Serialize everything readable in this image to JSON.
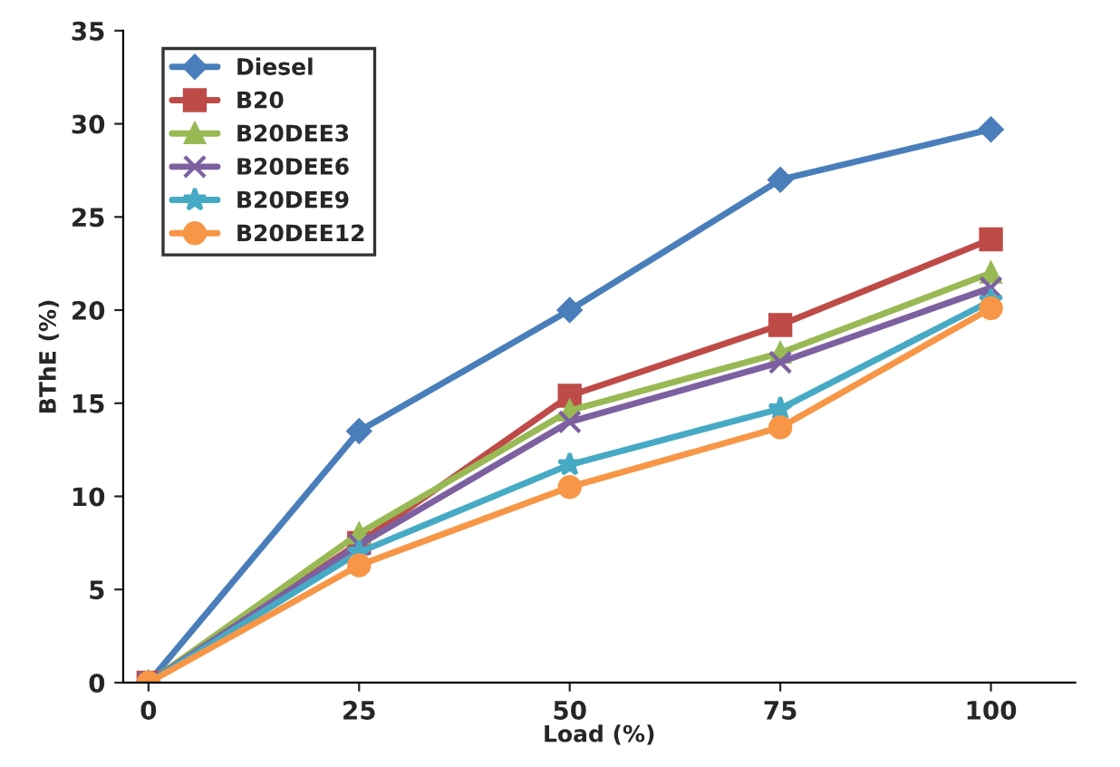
{
  "chart_data": {
    "type": "line",
    "xlabel": "Load (%)",
    "ylabel": "BThE (%)",
    "x": [
      0,
      25,
      50,
      75,
      100
    ],
    "xlim": [
      -3,
      110
    ],
    "xticks": [
      0,
      25,
      50,
      75,
      100
    ],
    "ylim": [
      0,
      35
    ],
    "yticks": [
      0,
      5,
      10,
      15,
      20,
      25,
      30,
      35
    ],
    "grid": false,
    "legend": "top left",
    "series": [
      {
        "name": "Diesel",
        "color": "#4a7ebb",
        "marker": "diamond",
        "values": [
          0,
          13.5,
          20,
          27,
          29.7
        ]
      },
      {
        "name": "B20",
        "color": "#be4b48",
        "marker": "square",
        "values": [
          0,
          7.5,
          15.4,
          19.2,
          23.8
        ]
      },
      {
        "name": "B20DEE3",
        "color": "#98b954",
        "marker": "triangle",
        "values": [
          0,
          8,
          14.6,
          17.7,
          22
        ]
      },
      {
        "name": "B20DEE6",
        "color": "#7d60a0",
        "marker": "cross",
        "values": [
          0,
          7.4,
          14,
          17.2,
          21.2
        ]
      },
      {
        "name": "B20DEE9",
        "color": "#46aac5",
        "marker": "star",
        "values": [
          0,
          7,
          11.7,
          14.7,
          20.5
        ]
      },
      {
        "name": "B20DEE12",
        "color": "#f79646",
        "marker": "circle",
        "values": [
          0,
          6.3,
          10.5,
          13.7,
          20.1
        ]
      }
    ]
  }
}
